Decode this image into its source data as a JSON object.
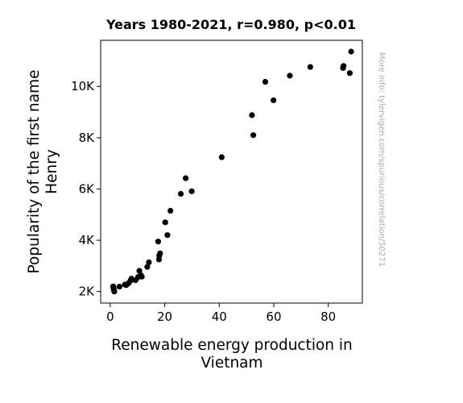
{
  "chart_data": {
    "type": "scatter",
    "title": "Years 1980-2021, r=0.980, p<0.01",
    "xlabel_lines": [
      "Renewable energy production in",
      "Vietnam"
    ],
    "ylabel_lines": [
      "Popularity of the first name",
      "Henry"
    ],
    "xlim": [
      -3.5,
      92.5
    ],
    "ylim": [
      1550,
      11800
    ],
    "x_ticks": [
      0,
      20,
      40,
      60,
      80
    ],
    "x_tick_labels": [
      "0",
      "20",
      "40",
      "60",
      "80"
    ],
    "y_ticks": [
      2000,
      4000,
      6000,
      8000,
      10000
    ],
    "y_tick_labels": [
      "2K",
      "4K",
      "6K",
      "8K",
      "10K"
    ],
    "grid": false,
    "marker_color": "#000000",
    "points": [
      [
        1.1,
        2200
      ],
      [
        1.2,
        2150
      ],
      [
        1.3,
        2100
      ],
      [
        1.4,
        2050
      ],
      [
        1.5,
        2000
      ],
      [
        3.4,
        2190
      ],
      [
        5.4,
        2270
      ],
      [
        5.9,
        2250
      ],
      [
        6.7,
        2320
      ],
      [
        7.4,
        2420
      ],
      [
        7.8,
        2500
      ],
      [
        9.3,
        2440
      ],
      [
        10.2,
        2560
      ],
      [
        10.7,
        2810
      ],
      [
        11.2,
        2640
      ],
      [
        11.6,
        2580
      ],
      [
        13.6,
        2960
      ],
      [
        14.2,
        3140
      ],
      [
        17.6,
        3950
      ],
      [
        17.9,
        3250
      ],
      [
        18.0,
        3400
      ],
      [
        18.3,
        3490
      ],
      [
        20.2,
        4700
      ],
      [
        21.0,
        4200
      ],
      [
        22.1,
        5150
      ],
      [
        25.9,
        5810
      ],
      [
        27.7,
        6420
      ],
      [
        29.9,
        5910
      ],
      [
        40.9,
        7240
      ],
      [
        52.0,
        8880
      ],
      [
        52.5,
        8100
      ],
      [
        56.9,
        10180
      ],
      [
        59.9,
        9460
      ],
      [
        65.9,
        10420
      ],
      [
        73.4,
        10760
      ],
      [
        85.4,
        10720
      ],
      [
        85.6,
        10800
      ],
      [
        87.9,
        10520
      ],
      [
        88.4,
        11360
      ]
    ]
  },
  "watermark": "More info: tylervigen.com/spurious/correlation/50271"
}
